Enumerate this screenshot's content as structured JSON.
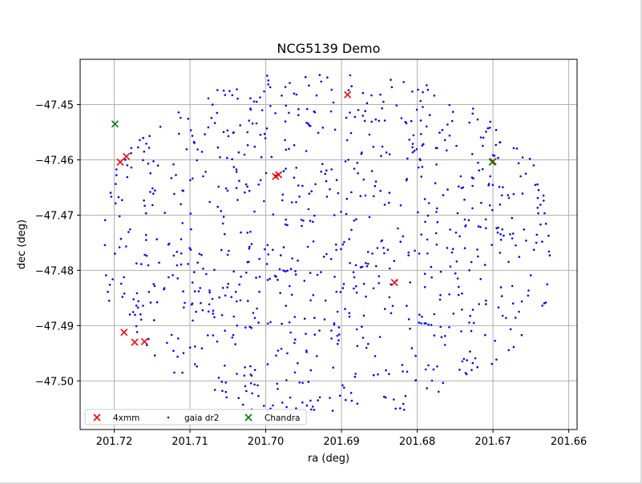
{
  "chart_data": {
    "type": "scatter",
    "title": "NCG5139 Demo",
    "xlabel": "ra (deg)",
    "ylabel": "dec (deg)",
    "xlim": [
      201.7245,
      201.6589
    ],
    "ylim": [
      -47.5088,
      -47.4418
    ],
    "x_inverted": true,
    "grid": true,
    "xticks": [
      201.72,
      201.71,
      201.7,
      201.69,
      201.68,
      201.67,
      201.66
    ],
    "xtick_labels": [
      "201.72",
      "201.71",
      "201.70",
      "201.69",
      "201.68",
      "201.67",
      "201.66"
    ],
    "yticks": [
      -47.45,
      -47.46,
      -47.47,
      -47.48,
      -47.49,
      -47.5
    ],
    "ytick_labels": [
      "−47.45",
      "−47.46",
      "−47.47",
      "−47.48",
      "−47.49",
      "−47.50"
    ],
    "legend": {
      "placement": "lower-left",
      "entries": [
        {
          "label": "4xmm",
          "marker": "x",
          "color": "#ff0000"
        },
        {
          "label": "gaia dr2",
          "marker": "dot",
          "color": "#0000ff"
        },
        {
          "label": "Chandra",
          "marker": "x",
          "color": "#008000"
        }
      ]
    },
    "series": [
      {
        "name": "4xmm",
        "marker": "x",
        "color": "#ff0000",
        "points": [
          [
            201.6892,
            -47.4482
          ],
          [
            201.7184,
            -47.4594
          ],
          [
            201.7192,
            -47.4604
          ],
          [
            201.6983,
            -47.4627
          ],
          [
            201.6987,
            -47.463
          ],
          [
            201.67,
            -47.4603
          ],
          [
            201.683,
            -47.4822
          ],
          [
            201.7187,
            -47.4912
          ],
          [
            201.7173,
            -47.493
          ],
          [
            201.716,
            -47.4929
          ]
        ]
      },
      {
        "name": "gaia dr2",
        "marker": "dot",
        "color": "#0000ff",
        "count_approx": 900,
        "ra_center": 201.692,
        "dec_center": -47.475,
        "ra_halfwidth": 0.0295,
        "dec_halfwidth": 0.0305
      },
      {
        "name": "Chandra",
        "marker": "x",
        "color": "#008000",
        "points": [
          [
            201.7199,
            -47.4535
          ],
          [
            201.6701,
            -47.4604
          ]
        ]
      }
    ]
  }
}
